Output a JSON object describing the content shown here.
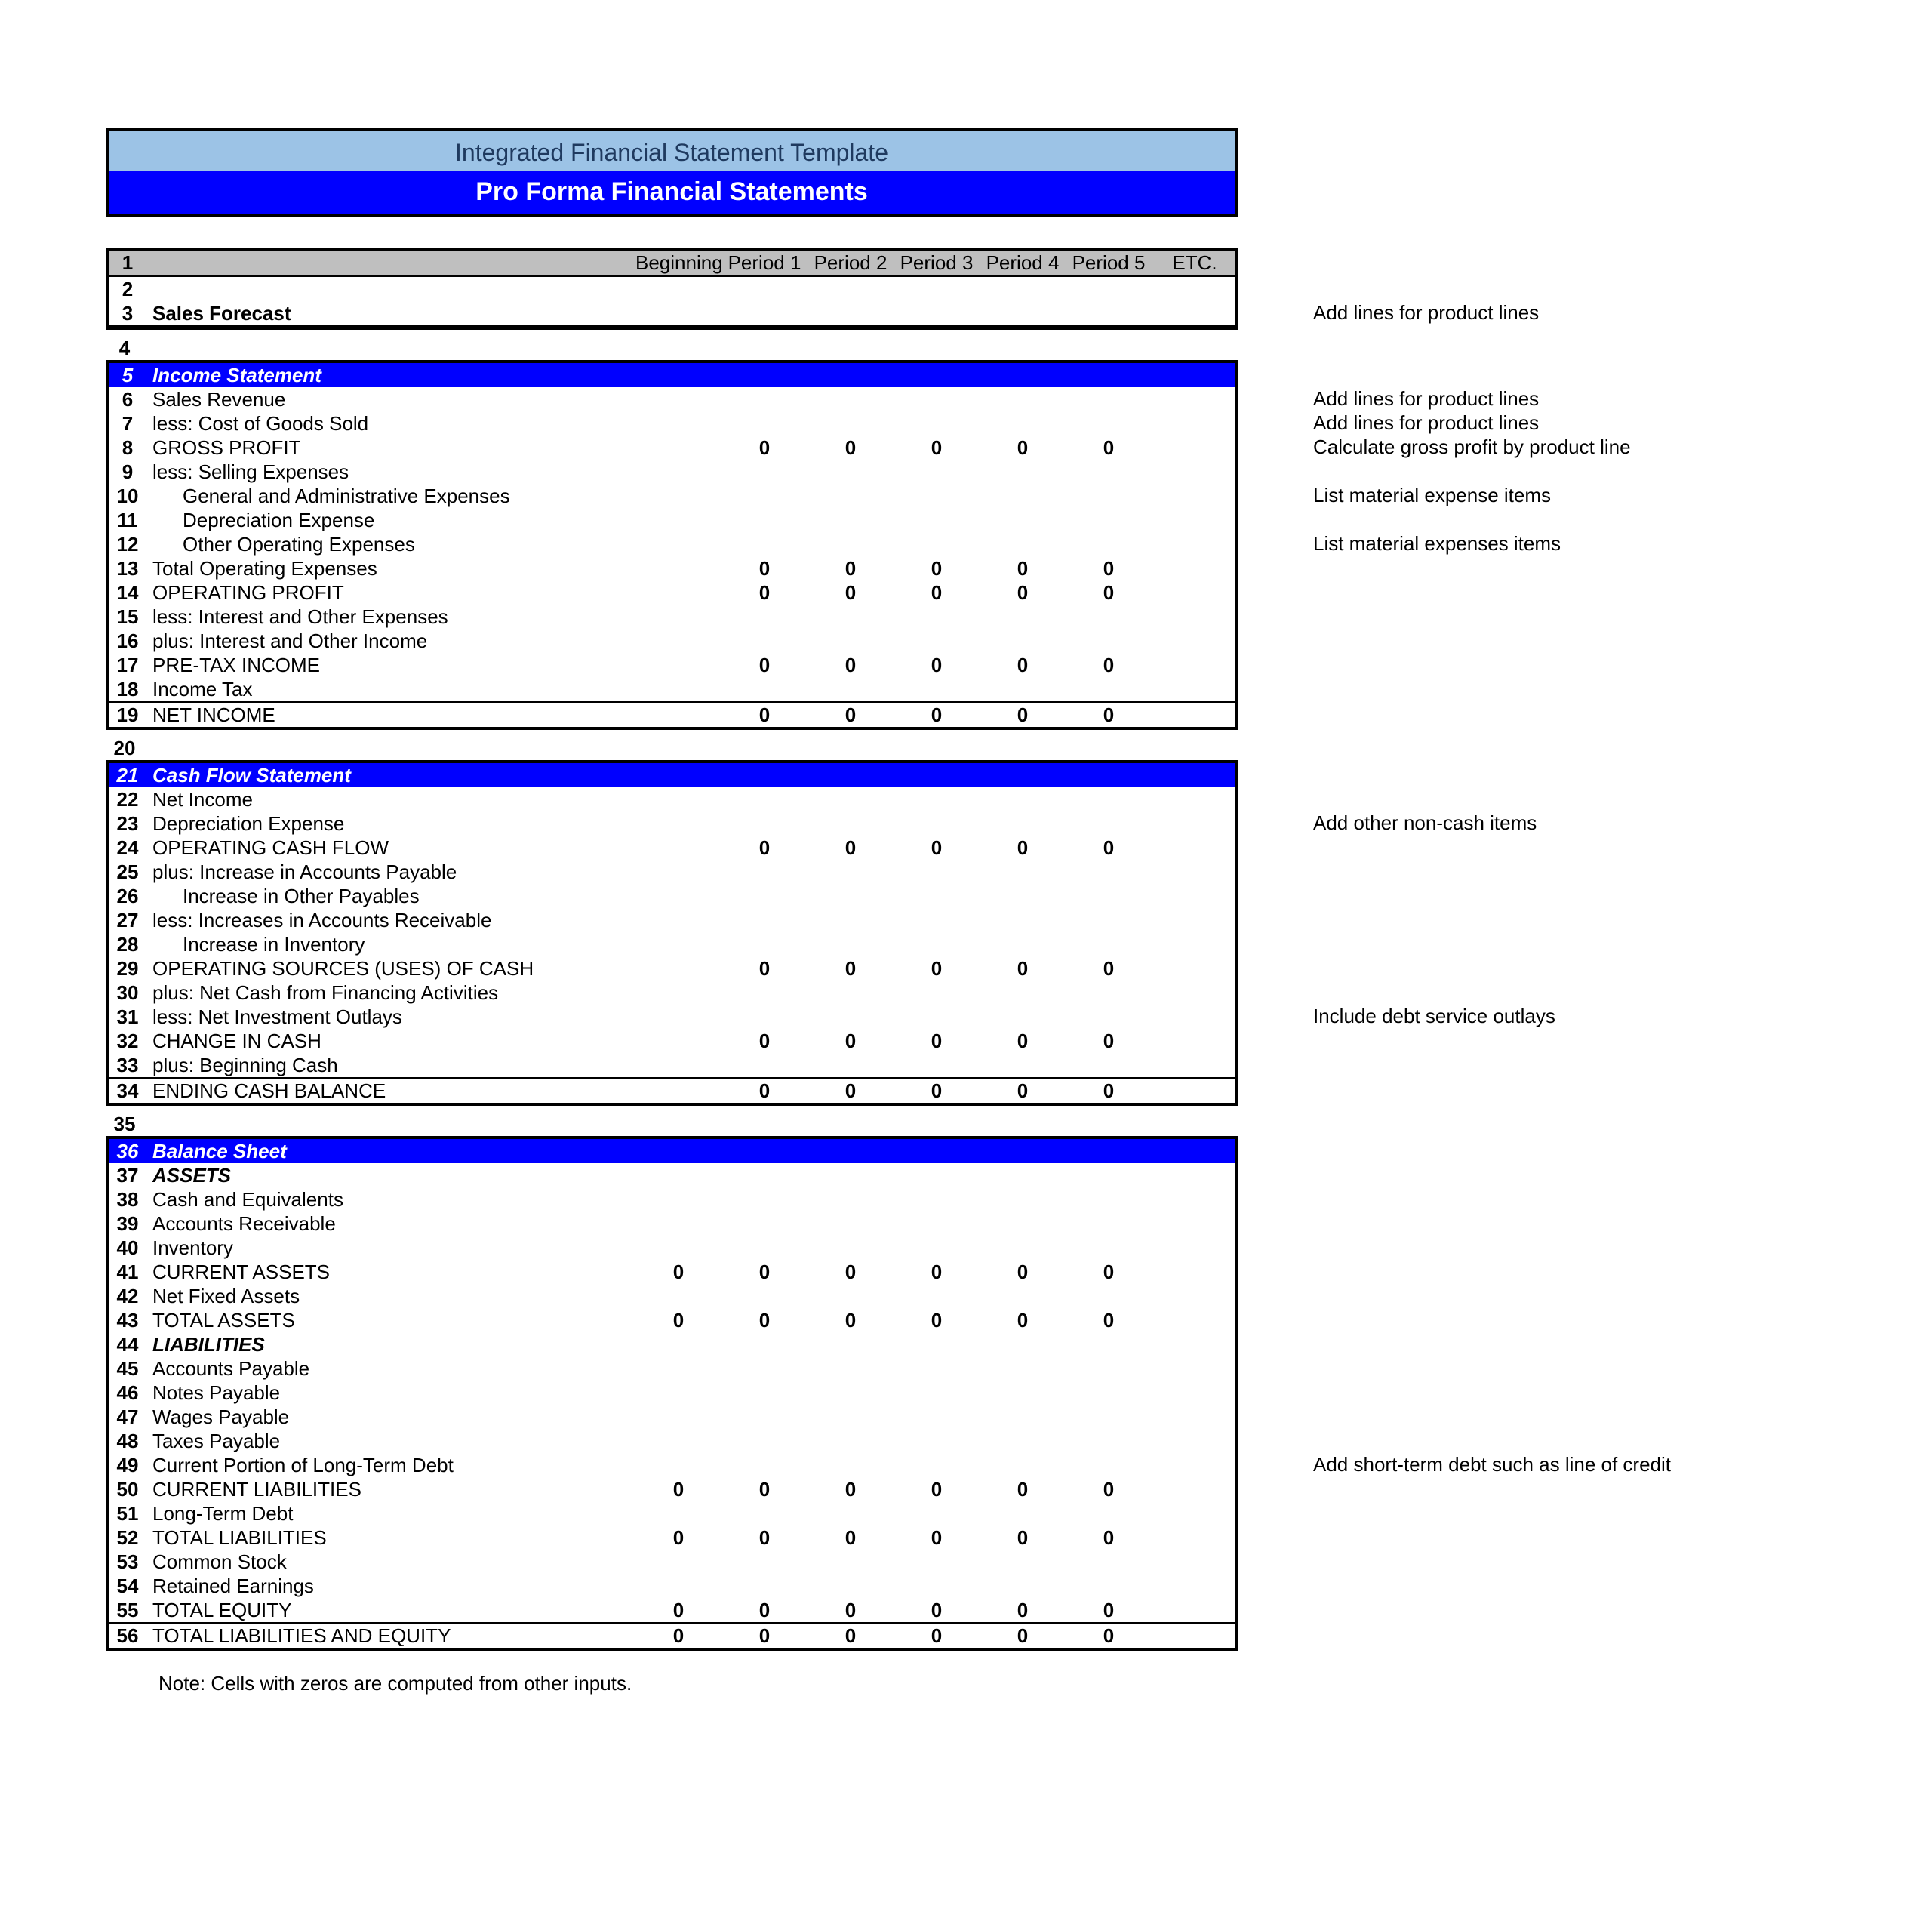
{
  "title1": "Integrated Financial Statement Template",
  "title2": "Pro Forma Financial Statements",
  "columns": [
    "Beginning",
    "Period 1",
    "Period 2",
    "Period 3",
    "Period 4",
    "Period 5"
  ],
  "etc": "ETC.",
  "footnote": "Note: Cells with zeros are computed from other inputs.",
  "colors": {
    "title_bg_light": "#9cc3e6",
    "title_bg_blue": "#0000ff",
    "header_gray": "#bfbfbf",
    "border": "#000000",
    "white": "#ffffff"
  },
  "rows": [
    {
      "n": "1",
      "block": 0,
      "type": "header"
    },
    {
      "n": "2",
      "block": 0,
      "type": "blank"
    },
    {
      "n": "3",
      "block": 0,
      "type": "line",
      "label": "Sales Forecast",
      "bold": true,
      "underline": true,
      "note": "Add lines for product lines"
    },
    {
      "n": "4",
      "block": "spacer"
    },
    {
      "n": "5",
      "block": 1,
      "type": "section",
      "label": "Income Statement"
    },
    {
      "n": "6",
      "block": 1,
      "type": "line",
      "label": "Sales Revenue",
      "note": "Add lines for product lines"
    },
    {
      "n": "7",
      "block": 1,
      "type": "line",
      "label": "less: Cost of Goods Sold",
      "note": "Add lines for product lines"
    },
    {
      "n": "8",
      "block": 1,
      "type": "line",
      "label": "GROSS PROFIT",
      "values": [
        "",
        "0",
        "0",
        "0",
        "0",
        "0"
      ],
      "note": "Calculate gross profit by product line"
    },
    {
      "n": "9",
      "block": 1,
      "type": "line",
      "label": "less: Selling Expenses"
    },
    {
      "n": "10",
      "block": 1,
      "type": "line",
      "label": "General and Administrative Expenses",
      "indent": 1,
      "note": "List material expense  items"
    },
    {
      "n": "11",
      "block": 1,
      "type": "line",
      "label": "Depreciation Expense",
      "indent": 1
    },
    {
      "n": "12",
      "block": 1,
      "type": "line",
      "label": "Other Operating Expenses",
      "indent": 1,
      "note": "List material expenses items"
    },
    {
      "n": "13",
      "block": 1,
      "type": "line",
      "label": "Total Operating Expenses",
      "values": [
        "",
        "0",
        "0",
        "0",
        "0",
        "0"
      ]
    },
    {
      "n": "14",
      "block": 1,
      "type": "line",
      "label": "OPERATING PROFIT",
      "values": [
        "",
        "0",
        "0",
        "0",
        "0",
        "0"
      ]
    },
    {
      "n": "15",
      "block": 1,
      "type": "line",
      "label": "less: Interest and Other Expenses"
    },
    {
      "n": "16",
      "block": 1,
      "type": "line",
      "label": "plus: Interest and Other Income"
    },
    {
      "n": "17",
      "block": 1,
      "type": "line",
      "label": "PRE-TAX INCOME",
      "values": [
        "",
        "0",
        "0",
        "0",
        "0",
        "0"
      ]
    },
    {
      "n": "18",
      "block": 1,
      "type": "line",
      "label": "Income Tax"
    },
    {
      "n": "19",
      "block": 1,
      "type": "line",
      "label": "NET INCOME",
      "values": [
        "",
        "0",
        "0",
        "0",
        "0",
        "0"
      ],
      "overline": true
    },
    {
      "n": "20",
      "block": "spacer"
    },
    {
      "n": "21",
      "block": 2,
      "type": "section",
      "label": "Cash Flow Statement"
    },
    {
      "n": "22",
      "block": 2,
      "type": "line",
      "label": "Net Income"
    },
    {
      "n": "23",
      "block": 2,
      "type": "line",
      "label": "Depreciation Expense",
      "note": "Add other non-cash items"
    },
    {
      "n": "24",
      "block": 2,
      "type": "line",
      "label": "OPERATING CASH FLOW",
      "values": [
        "",
        "0",
        "0",
        "0",
        "0",
        "0"
      ]
    },
    {
      "n": "25",
      "block": 2,
      "type": "line",
      "label": "plus: Increase in Accounts Payable"
    },
    {
      "n": "26",
      "block": 2,
      "type": "line",
      "label": "Increase in Other Payables",
      "indent": 1
    },
    {
      "n": "27",
      "block": 2,
      "type": "line",
      "label": "less: Increases in Accounts Receivable"
    },
    {
      "n": "28",
      "block": 2,
      "type": "line",
      "label": "Increase in Inventory",
      "indent": 1
    },
    {
      "n": "29",
      "block": 2,
      "type": "line",
      "label": "OPERATING SOURCES (USES) OF CASH",
      "values": [
        "",
        "0",
        "0",
        "0",
        "0",
        "0"
      ]
    },
    {
      "n": "30",
      "block": 2,
      "type": "line",
      "label": "plus: Net Cash from Financing Activities"
    },
    {
      "n": "31",
      "block": 2,
      "type": "line",
      "label": "less: Net Investment Outlays",
      "note": "Include debt service outlays"
    },
    {
      "n": "32",
      "block": 2,
      "type": "line",
      "label": "CHANGE IN CASH",
      "values": [
        "",
        "0",
        "0",
        "0",
        "0",
        "0"
      ]
    },
    {
      "n": "33",
      "block": 2,
      "type": "line",
      "label": "plus: Beginning Cash"
    },
    {
      "n": "34",
      "block": 2,
      "type": "line",
      "label": "ENDING CASH BALANCE",
      "values": [
        "",
        "0",
        "0",
        "0",
        "0",
        "0"
      ],
      "overline": true
    },
    {
      "n": "35",
      "block": "spacer"
    },
    {
      "n": "36",
      "block": 3,
      "type": "section",
      "label": "Balance Sheet"
    },
    {
      "n": "37",
      "block": 3,
      "type": "line",
      "label": "ASSETS",
      "bold": true,
      "italic": true
    },
    {
      "n": "38",
      "block": 3,
      "type": "line",
      "label": "Cash and Equivalents"
    },
    {
      "n": "39",
      "block": 3,
      "type": "line",
      "label": "Accounts Receivable"
    },
    {
      "n": "40",
      "block": 3,
      "type": "line",
      "label": "Inventory"
    },
    {
      "n": "41",
      "block": 3,
      "type": "line",
      "label": "CURRENT ASSETS",
      "values": [
        "0",
        "0",
        "0",
        "0",
        "0",
        "0"
      ]
    },
    {
      "n": "42",
      "block": 3,
      "type": "line",
      "label": "Net Fixed Assets"
    },
    {
      "n": "43",
      "block": 3,
      "type": "line",
      "label": "TOTAL ASSETS",
      "values": [
        "0",
        "0",
        "0",
        "0",
        "0",
        "0"
      ]
    },
    {
      "n": "44",
      "block": 3,
      "type": "line",
      "label": "LIABILITIES",
      "bold": true,
      "italic": true
    },
    {
      "n": "45",
      "block": 3,
      "type": "line",
      "label": "Accounts Payable"
    },
    {
      "n": "46",
      "block": 3,
      "type": "line",
      "label": "Notes Payable"
    },
    {
      "n": "47",
      "block": 3,
      "type": "line",
      "label": "Wages Payable"
    },
    {
      "n": "48",
      "block": 3,
      "type": "line",
      "label": "Taxes Payable"
    },
    {
      "n": "49",
      "block": 3,
      "type": "line",
      "label": "Current Portion of Long-Term Debt",
      "note": "Add short-term debt such as line of credit"
    },
    {
      "n": "50",
      "block": 3,
      "type": "line",
      "label": "CURRENT LIABILITIES",
      "values": [
        "0",
        "0",
        "0",
        "0",
        "0",
        "0"
      ]
    },
    {
      "n": "51",
      "block": 3,
      "type": "line",
      "label": "Long-Term Debt"
    },
    {
      "n": "52",
      "block": 3,
      "type": "line",
      "label": "TOTAL LIABILITIES",
      "values": [
        "0",
        "0",
        "0",
        "0",
        "0",
        "0"
      ]
    },
    {
      "n": "53",
      "block": 3,
      "type": "line",
      "label": "Common Stock"
    },
    {
      "n": "54",
      "block": 3,
      "type": "line",
      "label": "Retained Earnings"
    },
    {
      "n": "55",
      "block": 3,
      "type": "line",
      "label": "TOTAL EQUITY",
      "values": [
        "0",
        "0",
        "0",
        "0",
        "0",
        "0"
      ]
    },
    {
      "n": "56",
      "block": 3,
      "type": "line",
      "label": "TOTAL LIABILITIES AND EQUITY",
      "values": [
        "0",
        "0",
        "0",
        "0",
        "0",
        "0"
      ],
      "overline": true
    }
  ]
}
